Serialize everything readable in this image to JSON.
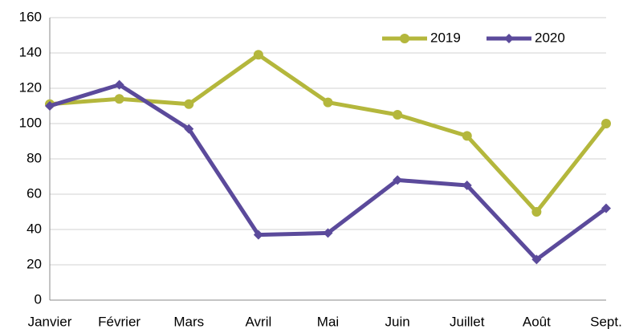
{
  "chart_data": {
    "type": "line",
    "categories": [
      "Janvier",
      "Février",
      "Mars",
      "Avril",
      "Mai",
      "Juin",
      "Juillet",
      "Août",
      "Sept."
    ],
    "series": [
      {
        "name": "2019",
        "color": "#b4b73c",
        "values": [
          111,
          114,
          111,
          139,
          112,
          105,
          93,
          50,
          100
        ]
      },
      {
        "name": "2020",
        "color": "#5b4a9b",
        "values": [
          110,
          122,
          97,
          37,
          38,
          68,
          65,
          23,
          52
        ]
      }
    ],
    "ylim": [
      0,
      160
    ],
    "yticks": [
      0,
      20,
      40,
      60,
      80,
      100,
      120,
      140,
      160
    ],
    "grid": true,
    "legend": "top-right"
  }
}
